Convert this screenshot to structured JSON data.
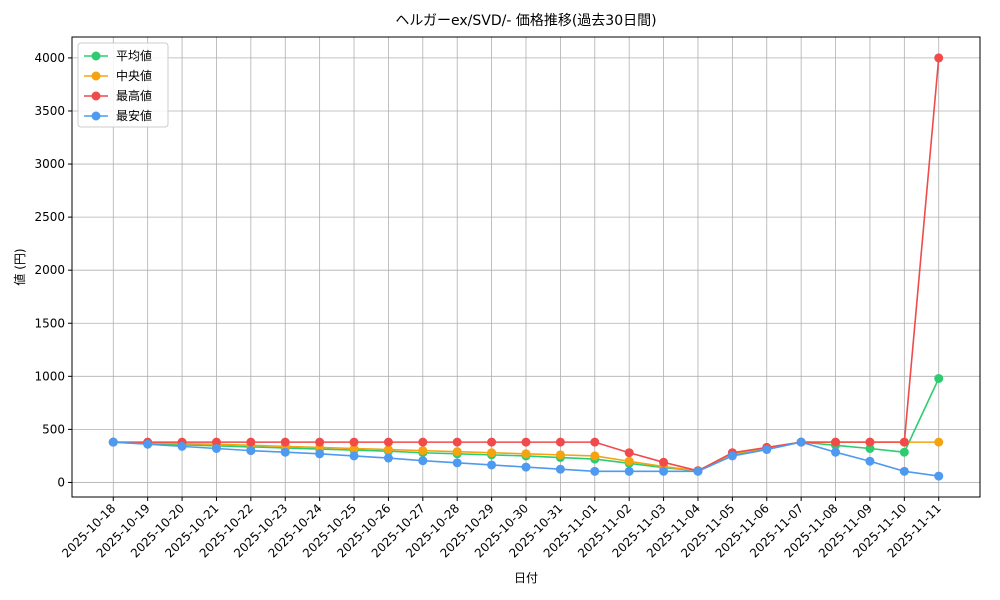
{
  "chart_data": {
    "type": "line",
    "title": "ヘルガーex/SVD/- 価格推移(過去30日間)",
    "xlabel": "日付",
    "ylabel": "値 (円)",
    "categories": [
      "2025-10-18",
      "2025-10-19",
      "2025-10-20",
      "2025-10-21",
      "2025-10-22",
      "2025-10-23",
      "2025-10-24",
      "2025-10-25",
      "2025-10-26",
      "2025-10-27",
      "2025-10-28",
      "2025-10-29",
      "2025-10-30",
      "2025-10-31",
      "2025-11-01",
      "2025-11-02",
      "2025-11-03",
      "2025-11-04",
      "2025-11-05",
      "2025-11-06",
      "2025-11-07",
      "2025-11-08",
      "2025-11-09",
      "2025-11-10",
      "2025-11-11"
    ],
    "series": [
      {
        "name": "平均値",
        "color": "#2ecc71",
        "values": [
          380,
          365,
          355,
          345,
          335,
          325,
          315,
          305,
          295,
          280,
          270,
          260,
          250,
          235,
          220,
          180,
          140,
          110,
          265,
          320,
          380,
          350,
          320,
          285,
          980
        ]
      },
      {
        "name": "中央値",
        "color": "#f5a30f",
        "values": [
          380,
          375,
          365,
          360,
          350,
          340,
          330,
          320,
          310,
          300,
          290,
          280,
          270,
          260,
          250,
          200,
          150,
          110,
          270,
          325,
          380,
          380,
          380,
          380,
          380
        ]
      },
      {
        "name": "最高値",
        "color": "#f04a4a",
        "values": [
          380,
          380,
          380,
          380,
          380,
          380,
          380,
          380,
          380,
          380,
          380,
          380,
          380,
          380,
          380,
          280,
          190,
          110,
          280,
          330,
          380,
          380,
          380,
          380,
          4000
        ]
      },
      {
        "name": "最安値",
        "color": "#4e9af1",
        "values": [
          380,
          360,
          340,
          320,
          300,
          285,
          270,
          250,
          230,
          205,
          185,
          165,
          145,
          125,
          105,
          105,
          105,
          105,
          250,
          310,
          380,
          285,
          200,
          105,
          60
        ]
      }
    ],
    "ylim": [
      -137,
      4197
    ],
    "yticks": [
      0,
      500,
      1000,
      1500,
      2000,
      2500,
      3000,
      3500,
      4000
    ],
    "grid": true,
    "legend": "upper-left"
  }
}
